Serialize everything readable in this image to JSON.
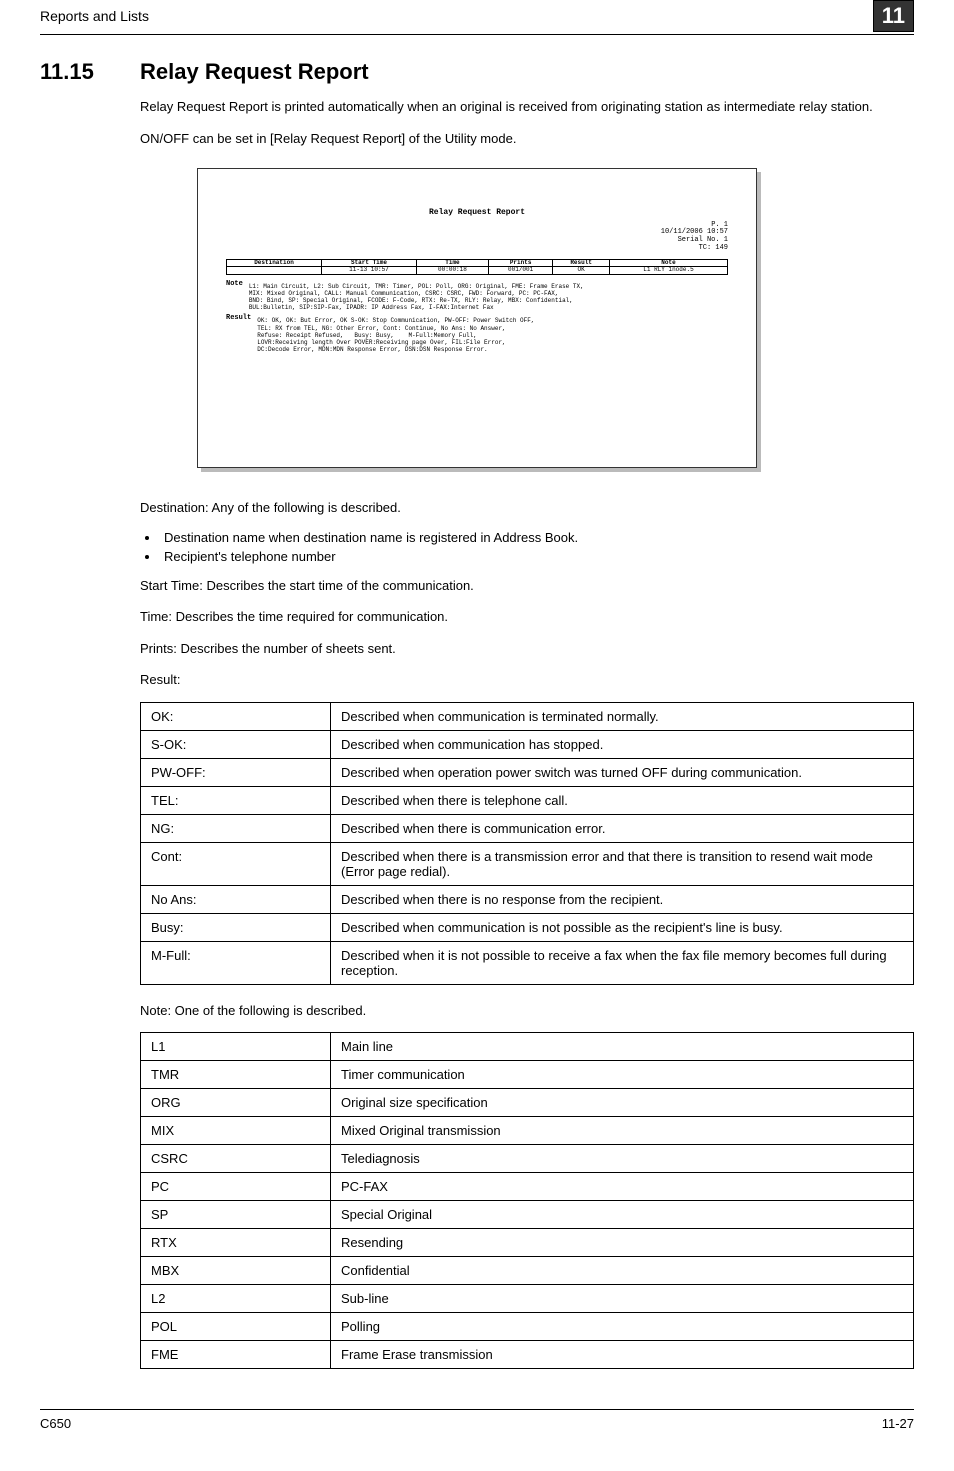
{
  "header": {
    "section_title": "Reports and Lists",
    "chapter_num": "11"
  },
  "section": {
    "number": "11.15",
    "title": "Relay Request Report"
  },
  "intro": {
    "p1": "Relay Request Report is printed automatically when an original is received from originating station as intermediate relay station.",
    "p2": "ON/OFF can be set in [Relay Request Report] of the Utility mode."
  },
  "sample": {
    "title": "Relay Request Report",
    "header_p": "P.  1",
    "header_date": "10/11/2006 10:57",
    "header_serial": "Serial No.  1",
    "header_tc": "TC:       149",
    "table": {
      "cols": [
        "Destination",
        "Start Time",
        "Time",
        "Prints",
        "Result",
        "Note"
      ],
      "row": [
        "",
        "11-13 10:57",
        "00:00:18",
        "001/001",
        "OK",
        "L1 RLY 1node.5"
      ]
    },
    "note_label": "Note",
    "note_text": "L1: Main Circuit, L2: Sub Circuit, TMR: Timer, POL: Poll, ORG: Original, FME: Frame Erase TX,\nMIX: Mixed Original, CALL: Manual Communication, CSRC: CSRC, FWD: Forward, PC: PC-FAX,\nBND: Bind, SP: Special Original, FCODE: F-Code, RTX: Re-TX, RLY: Relay, MBX: Confidential,\nBUL:Bulletin, SIP:SIP-Fax, IPADR: IP Address Fax, I-FAX:Internet Fax",
    "result_label": "Result",
    "result_text": "OK: OK, OK: But Error, OK S-OK: Stop Communication, PW-OFF: Power Switch OFF,\nTEL: RX from TEL, NG: Other Error, Cont: Continue, No Ans: No Answer,\nRefuse: Receipt Refused,   Busy: Busy,    M-Full:Memory Full,\nLOVR:Receiving length Over POVER:Receiving page Over, FIL:File Error,\nDC:Decode Error, MDN:MDN Response Error, DSN:DSN Response Error."
  },
  "dest_intro": "Destination: Any of the following is described.",
  "dest_bullets": {
    "b1": "Destination name when destination name is registered in Address Book.",
    "b2": "Recipient's telephone number"
  },
  "lines": {
    "start_time": "Start Time: Describes the start time of the communication.",
    "time": "Time: Describes the time required for communication.",
    "prints": "Prints: Describes the number of sheets sent.",
    "result": "Result:"
  },
  "result_table": {
    "rows": [
      {
        "k": "OK:",
        "v": "Described when communication is terminated normally."
      },
      {
        "k": "S-OK:",
        "v": "Described when communication has stopped."
      },
      {
        "k": "PW-OFF:",
        "v": "Described when operation power switch was turned OFF during communication."
      },
      {
        "k": "TEL:",
        "v": "Described when there is telephone call."
      },
      {
        "k": "NG:",
        "v": "Described when there is communication error."
      },
      {
        "k": "Cont:",
        "v": "Described when there is a transmission error and that there is transition to resend wait mode (Error page redial)."
      },
      {
        "k": "No Ans:",
        "v": "Described when there is no response from the recipient."
      },
      {
        "k": "Busy:",
        "v": "Described when communication is not possible as the recipient's line is busy."
      },
      {
        "k": "M-Full:",
        "v": "Described when it is not possible to receive a fax when the fax file memory becomes full during reception."
      }
    ]
  },
  "note_intro": "Note: One of the following is described.",
  "note_table": {
    "rows": [
      {
        "k": "L1",
        "v": "Main line"
      },
      {
        "k": "TMR",
        "v": "Timer communication"
      },
      {
        "k": "ORG",
        "v": "Original size specification"
      },
      {
        "k": "MIX",
        "v": "Mixed Original transmission"
      },
      {
        "k": "CSRC",
        "v": "Telediagnosis"
      },
      {
        "k": "PC",
        "v": "PC-FAX"
      },
      {
        "k": "SP",
        "v": "Special Original"
      },
      {
        "k": "RTX",
        "v": "Resending"
      },
      {
        "k": "MBX",
        "v": "Confidential"
      },
      {
        "k": "L2",
        "v": "Sub-line"
      },
      {
        "k": "POL",
        "v": "Polling"
      },
      {
        "k": "FME",
        "v": "Frame Erase transmission"
      }
    ]
  },
  "footer": {
    "left": "C650",
    "right": "11-27"
  }
}
